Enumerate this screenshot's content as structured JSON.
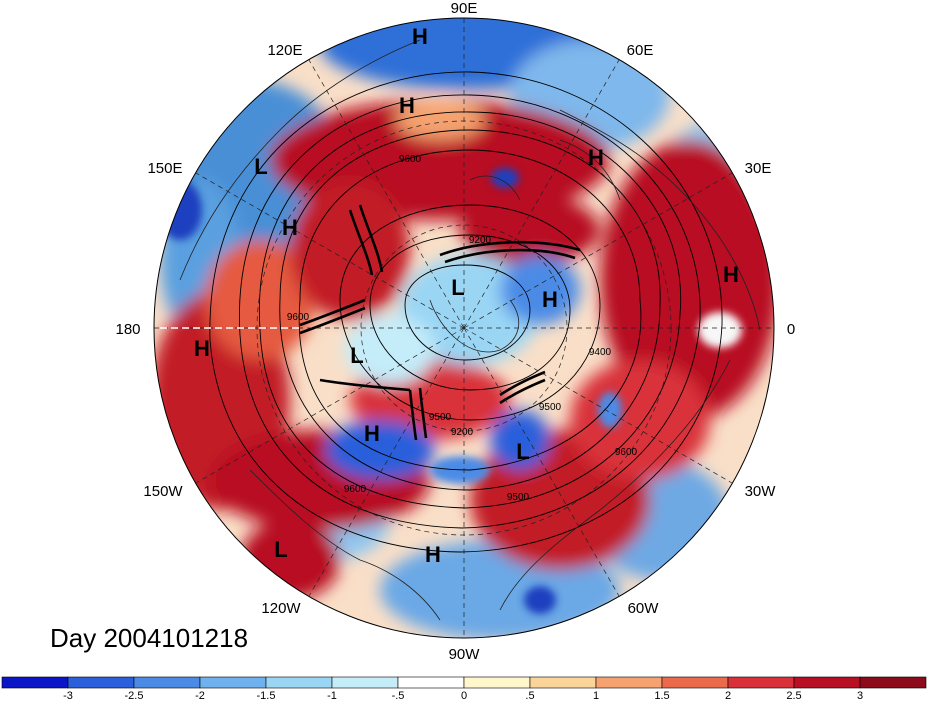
{
  "map": {
    "projection": "north-polar-stereographic",
    "longitude_labels": {
      "lon_0": "0",
      "lon_30e": "30E",
      "lon_60e": "60E",
      "lon_90e": "90E",
      "lon_120e": "120E",
      "lon_150e": "150E",
      "lon_180": "180",
      "lon_150w": "150W",
      "lon_120w": "120W",
      "lon_90w": "90W",
      "lon_60w": "60W",
      "lon_30w": "30W"
    },
    "contour_labels": [
      "9600",
      "9200",
      "9600",
      "9400",
      "9500",
      "9200",
      "9500",
      "9600",
      "9600",
      "9500"
    ],
    "pressure_centers": [
      "H",
      "H",
      "H",
      "H",
      "L",
      "H",
      "H",
      "L",
      "H",
      "L",
      "H",
      "H",
      "L",
      "L",
      "H"
    ],
    "day_label": "Day 2004101218",
    "field_colors": {
      "deep_red": "#a50f15",
      "red": "#e03a2e",
      "orange": "#f4a582",
      "white": "#f7f7f7",
      "light_blue": "#92c5de",
      "blue": "#4393c3",
      "dark_blue": "#1f3fbf"
    }
  },
  "colorbar": {
    "tick_labels": [
      "-3",
      "-2.5",
      "-2",
      "-1.5",
      "-1",
      "-.5",
      "0",
      ".5",
      "1",
      "1.5",
      "2",
      "2.5",
      "3"
    ],
    "colors": [
      "#0b16c9",
      "#2b5fdc",
      "#4b8be6",
      "#6fb0ee",
      "#9ad6f4",
      "#c4ecf9",
      "#ffffff",
      "#fff6cc",
      "#fbd49a",
      "#f5a270",
      "#ec6a4c",
      "#d9303a",
      "#b80f24",
      "#8c0a1a"
    ]
  }
}
